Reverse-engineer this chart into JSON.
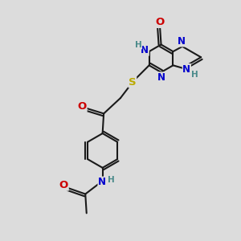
{
  "bg_color": "#dcdcdc",
  "bond_color": "#1a1a1a",
  "bond_width": 1.5,
  "atom_colors": {
    "N": "#0000cc",
    "O": "#cc0000",
    "S": "#bbaa00",
    "C": "#1a1a1a",
    "H": "#4a8a8a"
  },
  "font_size": 8.5,
  "fig_size": [
    3.0,
    3.0
  ],
  "dpi": 100
}
